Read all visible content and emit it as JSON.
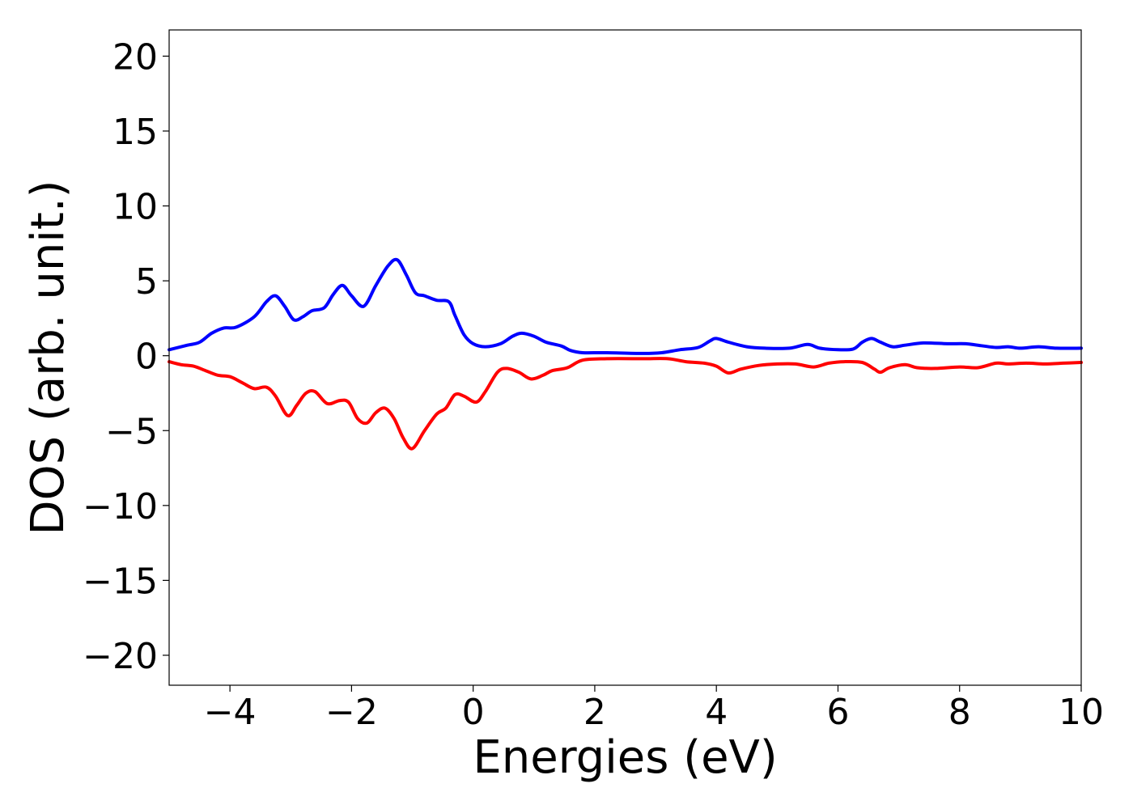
{
  "chart_data": {
    "type": "line",
    "title": "",
    "xlabel": "Energies (eV)",
    "ylabel": "DOS (arb. unit.)",
    "xlim": [
      -5,
      10
    ],
    "ylim": [
      -22,
      21.75
    ],
    "grid": false,
    "legend": "none",
    "x_ticks": [
      -4,
      -2,
      0,
      2,
      4,
      6,
      8,
      10
    ],
    "x_tick_labels": [
      "−4",
      "−2",
      "0",
      "2",
      "4",
      "6",
      "8",
      "10"
    ],
    "y_ticks": [
      20,
      15,
      10,
      5,
      0,
      -5,
      -10,
      -15,
      -20
    ],
    "y_tick_labels": [
      "20",
      "15",
      "10",
      "5",
      "0",
      "−5",
      "−10",
      "−15",
      "−20"
    ],
    "series": [
      {
        "color": "#0000ff",
        "points": [
          [
            -5.0,
            0.4
          ],
          [
            -4.7,
            0.7
          ],
          [
            -4.5,
            0.9
          ],
          [
            -4.3,
            1.5
          ],
          [
            -4.1,
            1.85
          ],
          [
            -3.9,
            1.9
          ],
          [
            -3.6,
            2.6
          ],
          [
            -3.4,
            3.6
          ],
          [
            -3.25,
            4.0
          ],
          [
            -3.1,
            3.3
          ],
          [
            -2.95,
            2.4
          ],
          [
            -2.8,
            2.6
          ],
          [
            -2.65,
            3.0
          ],
          [
            -2.45,
            3.2
          ],
          [
            -2.3,
            4.1
          ],
          [
            -2.15,
            4.7
          ],
          [
            -2.0,
            4.0
          ],
          [
            -1.8,
            3.3
          ],
          [
            -1.6,
            4.7
          ],
          [
            -1.4,
            6.0
          ],
          [
            -1.25,
            6.4
          ],
          [
            -1.1,
            5.4
          ],
          [
            -0.95,
            4.2
          ],
          [
            -0.8,
            4.0
          ],
          [
            -0.6,
            3.7
          ],
          [
            -0.4,
            3.6
          ],
          [
            -0.3,
            2.7
          ],
          [
            -0.15,
            1.4
          ],
          [
            0.0,
            0.8
          ],
          [
            0.2,
            0.6
          ],
          [
            0.45,
            0.8
          ],
          [
            0.65,
            1.3
          ],
          [
            0.8,
            1.5
          ],
          [
            1.0,
            1.3
          ],
          [
            1.2,
            0.9
          ],
          [
            1.45,
            0.65
          ],
          [
            1.6,
            0.35
          ],
          [
            1.8,
            0.2
          ],
          [
            2.2,
            0.2
          ],
          [
            2.8,
            0.15
          ],
          [
            3.1,
            0.2
          ],
          [
            3.4,
            0.4
          ],
          [
            3.7,
            0.55
          ],
          [
            3.9,
            1.0
          ],
          [
            4.0,
            1.15
          ],
          [
            4.2,
            0.9
          ],
          [
            4.5,
            0.6
          ],
          [
            4.8,
            0.5
          ],
          [
            5.2,
            0.5
          ],
          [
            5.5,
            0.75
          ],
          [
            5.7,
            0.5
          ],
          [
            6.0,
            0.4
          ],
          [
            6.25,
            0.45
          ],
          [
            6.4,
            0.9
          ],
          [
            6.55,
            1.15
          ],
          [
            6.7,
            0.9
          ],
          [
            6.9,
            0.6
          ],
          [
            7.1,
            0.7
          ],
          [
            7.4,
            0.85
          ],
          [
            7.8,
            0.8
          ],
          [
            8.1,
            0.8
          ],
          [
            8.3,
            0.7
          ],
          [
            8.6,
            0.55
          ],
          [
            8.8,
            0.6
          ],
          [
            9.0,
            0.5
          ],
          [
            9.3,
            0.6
          ],
          [
            9.6,
            0.5
          ],
          [
            10.0,
            0.5
          ]
        ]
      },
      {
        "color": "#ff0000",
        "points": [
          [
            -5.0,
            -0.4
          ],
          [
            -4.8,
            -0.6
          ],
          [
            -4.6,
            -0.7
          ],
          [
            -4.4,
            -1.0
          ],
          [
            -4.2,
            -1.3
          ],
          [
            -4.0,
            -1.4
          ],
          [
            -3.8,
            -1.8
          ],
          [
            -3.6,
            -2.2
          ],
          [
            -3.4,
            -2.1
          ],
          [
            -3.25,
            -2.7
          ],
          [
            -3.05,
            -4.0
          ],
          [
            -2.9,
            -3.3
          ],
          [
            -2.75,
            -2.5
          ],
          [
            -2.6,
            -2.4
          ],
          [
            -2.4,
            -3.2
          ],
          [
            -2.2,
            -3.0
          ],
          [
            -2.05,
            -3.1
          ],
          [
            -1.9,
            -4.2
          ],
          [
            -1.75,
            -4.5
          ],
          [
            -1.6,
            -3.8
          ],
          [
            -1.45,
            -3.5
          ],
          [
            -1.3,
            -4.2
          ],
          [
            -1.15,
            -5.5
          ],
          [
            -1.0,
            -6.2
          ],
          [
            -0.8,
            -5.0
          ],
          [
            -0.6,
            -3.9
          ],
          [
            -0.45,
            -3.5
          ],
          [
            -0.3,
            -2.6
          ],
          [
            -0.15,
            -2.7
          ],
          [
            0.05,
            -3.1
          ],
          [
            0.2,
            -2.4
          ],
          [
            0.4,
            -1.1
          ],
          [
            0.55,
            -0.85
          ],
          [
            0.75,
            -1.1
          ],
          [
            0.95,
            -1.55
          ],
          [
            1.15,
            -1.3
          ],
          [
            1.3,
            -1.0
          ],
          [
            1.55,
            -0.8
          ],
          [
            1.8,
            -0.3
          ],
          [
            2.2,
            -0.2
          ],
          [
            2.8,
            -0.2
          ],
          [
            3.2,
            -0.2
          ],
          [
            3.5,
            -0.4
          ],
          [
            3.8,
            -0.5
          ],
          [
            4.0,
            -0.7
          ],
          [
            4.2,
            -1.15
          ],
          [
            4.4,
            -0.9
          ],
          [
            4.7,
            -0.65
          ],
          [
            5.0,
            -0.55
          ],
          [
            5.3,
            -0.55
          ],
          [
            5.6,
            -0.75
          ],
          [
            5.85,
            -0.5
          ],
          [
            6.1,
            -0.4
          ],
          [
            6.4,
            -0.45
          ],
          [
            6.6,
            -0.9
          ],
          [
            6.7,
            -1.1
          ],
          [
            6.85,
            -0.8
          ],
          [
            7.1,
            -0.6
          ],
          [
            7.3,
            -0.8
          ],
          [
            7.6,
            -0.85
          ],
          [
            8.0,
            -0.75
          ],
          [
            8.3,
            -0.8
          ],
          [
            8.6,
            -0.5
          ],
          [
            8.8,
            -0.55
          ],
          [
            9.1,
            -0.5
          ],
          [
            9.4,
            -0.55
          ],
          [
            9.7,
            -0.5
          ],
          [
            10.0,
            -0.45
          ]
        ]
      }
    ]
  }
}
